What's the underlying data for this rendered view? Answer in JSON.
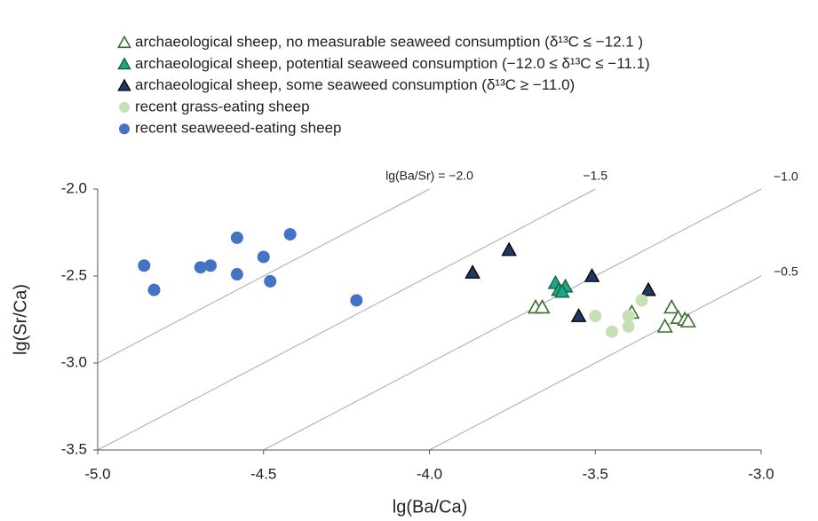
{
  "chart_data": {
    "type": "scatter",
    "x_label": "lg(Ba/Ca)",
    "y_label": "lg(Sr/Ca)",
    "xlim": [
      -5.0,
      -3.0
    ],
    "ylim": [
      -3.5,
      -2.0
    ],
    "xticks": [
      {
        "value": -5,
        "label": "-5.0"
      },
      {
        "value": -4.5,
        "label": "-4.5"
      },
      {
        "value": -4,
        "label": "-4.0"
      },
      {
        "value": -3.5,
        "label": "-3.5"
      },
      {
        "value": -3,
        "label": "-3.0"
      }
    ],
    "yticks": [
      {
        "value": -2,
        "label": "-2.0"
      },
      {
        "value": -2.5,
        "label": "-2.5"
      },
      {
        "value": -3,
        "label": "-3.0"
      },
      {
        "value": -3.5,
        "label": "-3.5"
      }
    ],
    "reference_lines": [
      {
        "value": -2.0,
        "label": "lg(Ba/Sr) = −2.0"
      },
      {
        "value": -1.5,
        "label": "−1.5"
      },
      {
        "value": -1.0,
        "label": "−1.0"
      },
      {
        "value": -0.5,
        "label": "−0.5"
      }
    ],
    "series": [
      {
        "name": "archaeological sheep, no measurable seaweed consumption (δ¹³C ≤ −12.1 )",
        "marker": "triangle-open",
        "color": "#3b6e2b",
        "x": [
          -3.68,
          -3.66,
          -3.39,
          -3.29,
          -3.27,
          -3.25,
          -3.23,
          -3.22
        ],
        "values": [
          -2.68,
          -2.68,
          -2.71,
          -2.79,
          -2.68,
          -2.74,
          -2.75,
          -2.76
        ]
      },
      {
        "name": "archaeological sheep, potential seaweed consumption (−12.0 ≤ δ¹³C ≤ −11.1)",
        "marker": "triangle",
        "color": "#1aa68a",
        "x": [
          -3.62,
          -3.61,
          -3.59,
          -3.6
        ],
        "values": [
          -2.54,
          -2.58,
          -2.56,
          -2.59
        ]
      },
      {
        "name": "archaeological sheep, some seaweed consumption (δ¹³C ≥ −11.0)",
        "marker": "triangle",
        "color": "#1f3864",
        "x": [
          -3.87,
          -3.76,
          -3.51,
          -3.55,
          -3.34
        ],
        "values": [
          -2.48,
          -2.35,
          -2.5,
          -2.73,
          -2.58
        ]
      },
      {
        "name": "recent grass-eating sheep",
        "marker": "circle",
        "color": "#c5e0b4",
        "x": [
          -3.5,
          -3.45,
          -3.4,
          -3.4,
          -3.36
        ],
        "values": [
          -2.73,
          -2.82,
          -2.73,
          -2.79,
          -2.64
        ]
      },
      {
        "name": "recent seaweeed-eating sheep",
        "marker": "circle",
        "color": "#4472c4",
        "x": [
          -4.86,
          -4.83,
          -4.69,
          -4.66,
          -4.58,
          -4.58,
          -4.5,
          -4.48,
          -4.42,
          -4.22
        ],
        "values": [
          -2.44,
          -2.58,
          -2.45,
          -2.44,
          -2.28,
          -2.49,
          -2.39,
          -2.53,
          -2.26,
          -2.64
        ]
      }
    ]
  }
}
